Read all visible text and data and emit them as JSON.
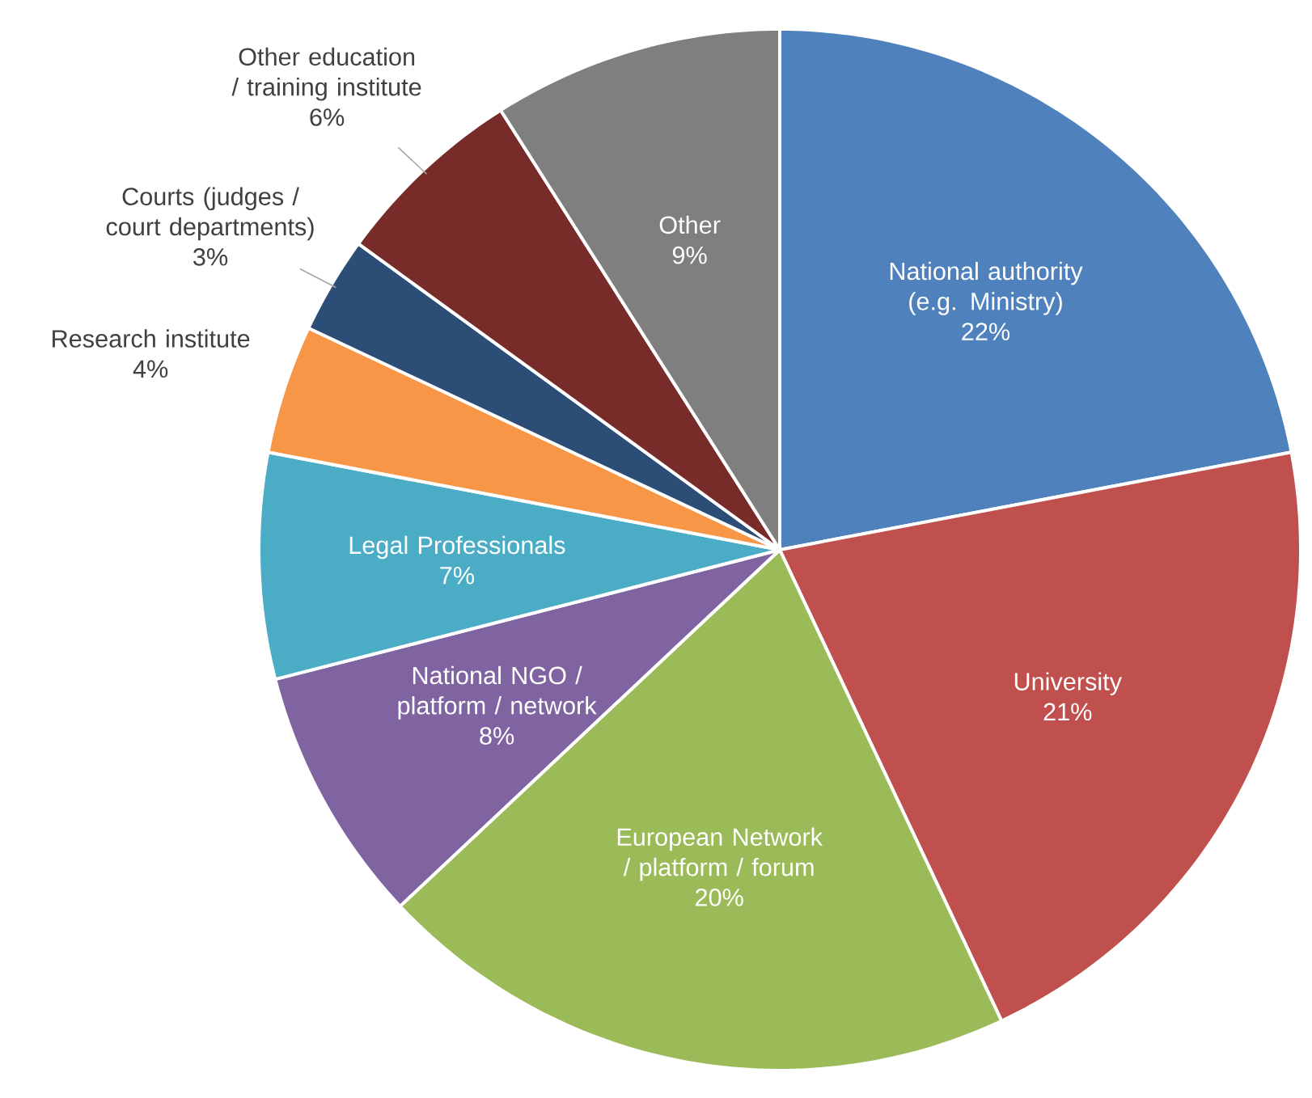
{
  "chart_data": {
    "type": "pie",
    "categories": [
      "National authority (e.g. Ministry)",
      "University",
      "European Network / platform / forum",
      "National NGO / platform / network",
      "Legal Professionals",
      "Research institute",
      "Courts (judges / court departments)",
      "Other education / training institute",
      "Other"
    ],
    "values": [
      22,
      21,
      20,
      8,
      7,
      4,
      3,
      6,
      9
    ],
    "value_labels": [
      "22%",
      "21%",
      "20%",
      "8%",
      "7%",
      "4%",
      "3%",
      "6%",
      "9%"
    ],
    "colors": [
      "#4f81bd",
      "#c0504d",
      "#9bbb59",
      "#8064a2",
      "#4bacc6",
      "#f79646",
      "#2c4d75",
      "#772c2a",
      "#7f7f7f"
    ]
  }
}
